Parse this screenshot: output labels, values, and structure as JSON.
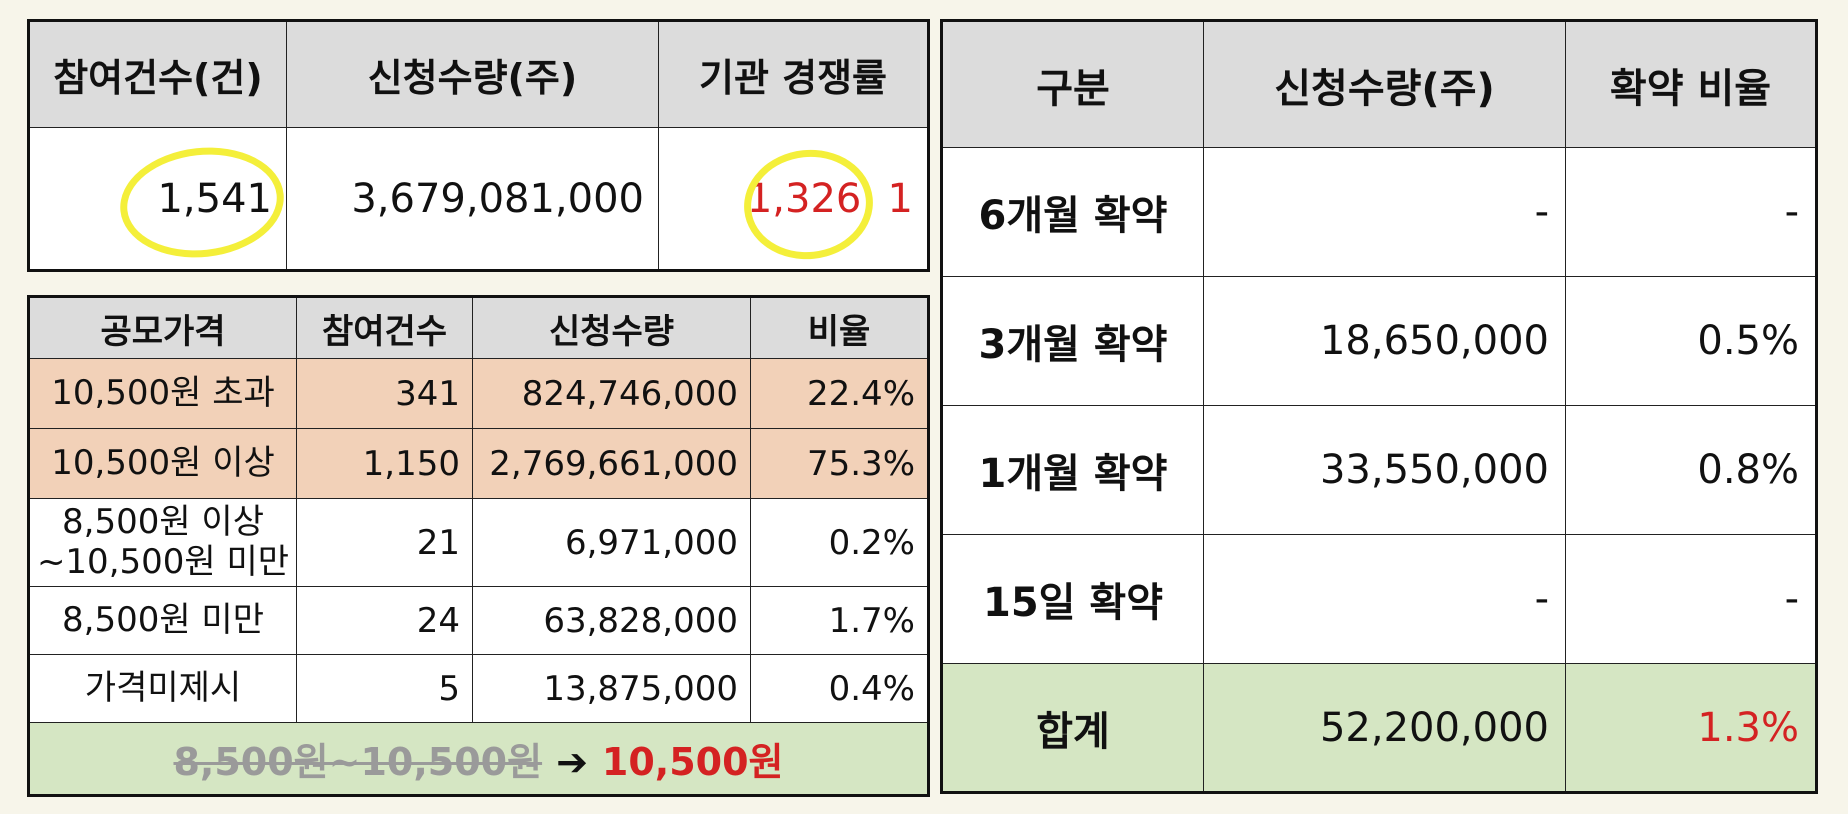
{
  "summary": {
    "headers": [
      "참여건수(건)",
      "신청수량(주)",
      "기관 경쟁률"
    ],
    "participation_count": "1,541",
    "subscription_qty": "3,679,081,000",
    "competition_rate": "1,326: 1"
  },
  "price_table": {
    "headers": [
      "공모가격",
      "참여건수",
      "신청수량",
      "비율"
    ],
    "rows": [
      {
        "label": "10,500원 초과",
        "count": "341",
        "qty": "824,746,000",
        "ratio": "22.4%"
      },
      {
        "label": "10,500원 이상",
        "count": "1,150",
        "qty": "2,769,661,000",
        "ratio": "75.3%"
      },
      {
        "label": "8,500원 이상 ~10,500원 미만",
        "count": "21",
        "qty": "6,971,000",
        "ratio": "0.2%"
      },
      {
        "label": "8,500원 미만",
        "count": "24",
        "qty": "63,828,000",
        "ratio": "1.7%"
      },
      {
        "label": "가격미제시",
        "count": "5",
        "qty": "13,875,000",
        "ratio": "0.4%"
      }
    ],
    "footer_old_range": "8,500원~10,500원",
    "footer_arrow": "➔",
    "footer_final_price": "10,500원"
  },
  "lockup_table": {
    "headers": [
      "구분",
      "신청수량(주)",
      "확약 비율"
    ],
    "rows": [
      {
        "label": "6개월 확약",
        "qty": "-",
        "ratio": "-"
      },
      {
        "label": "3개월 확약",
        "qty": "18,650,000",
        "ratio": "0.5%"
      },
      {
        "label": "1개월 확약",
        "qty": "33,550,000",
        "ratio": "0.8%"
      },
      {
        "label": "15일 확약",
        "qty": "-",
        "ratio": "-"
      }
    ],
    "total": {
      "label": "합계",
      "qty": "52,200,000",
      "ratio": "1.3%"
    }
  },
  "colors": {
    "header_gray": "#dcdcdc",
    "peach_row": "#f2d1b8",
    "green_row": "#d5e6c3",
    "highlight_red": "#d42222",
    "highlight_ring_yellow": "#f4ef3a"
  }
}
